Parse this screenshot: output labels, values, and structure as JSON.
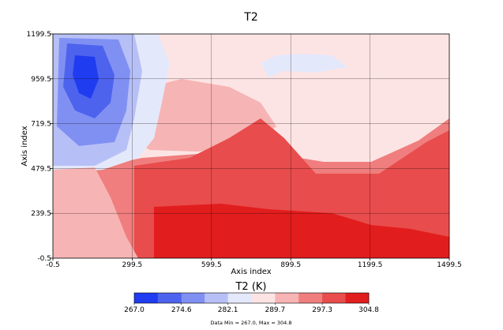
{
  "chart_data": {
    "type": "heatmap",
    "title": "T2",
    "xlabel": "Axis index",
    "ylabel": "Axis index",
    "xlim": [
      -0.5,
      1499.5
    ],
    "ylim": [
      -0.5,
      1199.5
    ],
    "x_ticks": [
      "-0.5",
      "299.5",
      "599.5",
      "899.5",
      "1199.5",
      "1499.5"
    ],
    "y_ticks": [
      "-0.5",
      "239.5",
      "479.5",
      "719.5",
      "959.5",
      "1199.5"
    ],
    "x_tick_values": [
      -0.5,
      299.5,
      599.5,
      899.5,
      1199.5,
      1499.5
    ],
    "y_tick_values": [
      -0.5,
      239.5,
      479.5,
      719.5,
      959.5,
      1199.5
    ],
    "grid": true,
    "colorbar": {
      "title": "T2 (K)",
      "ticks": [
        "267.0",
        "274.6",
        "282.1",
        "289.7",
        "297.3",
        "304.8"
      ],
      "bins": [
        267.0,
        270.8,
        274.6,
        278.35,
        282.1,
        285.9,
        289.7,
        293.5,
        297.3,
        301.05,
        304.8
      ],
      "colors": [
        "#1f3cf0",
        "#4d63ee",
        "#8090f2",
        "#b7c0f6",
        "#e4e8fb",
        "#fde4e4",
        "#f7b4b4",
        "#f07e7e",
        "#e84c4c",
        "#e21d1d"
      ]
    },
    "data_min": 267.0,
    "data_max": 304.8,
    "footer": "Data Min = 267.0, Max = 304.8"
  }
}
